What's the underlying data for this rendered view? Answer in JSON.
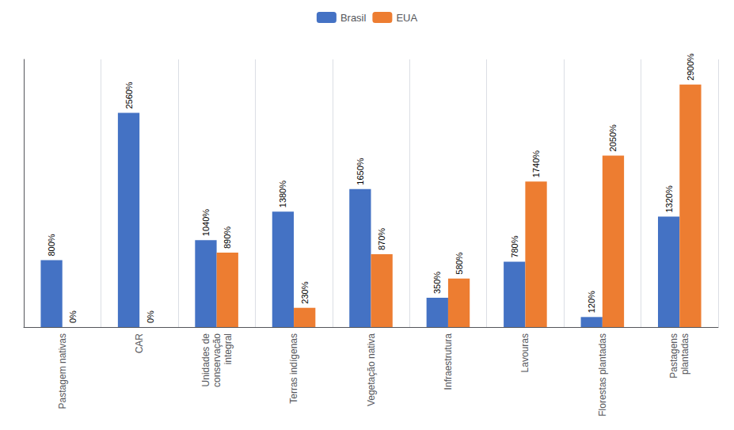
{
  "chart_data": {
    "type": "bar",
    "categories": [
      "Pastagem nativas",
      "CAR",
      "Unidades de\nconservação\nintegral",
      "Terras indígenas",
      "Vegetação nativa",
      "Infraestrutura",
      "Lavouras",
      "Florestas plantadas",
      "Pastagens\nplantadas"
    ],
    "series": [
      {
        "name": "Brasil",
        "color": "#4472C4",
        "values": [
          800,
          2560,
          1040,
          1380,
          1650,
          350,
          780,
          120,
          1320
        ],
        "value_labels": [
          "800%",
          "2560%",
          "1040%",
          "1380%",
          "1650%",
          "350%",
          "780%",
          "120%",
          "1320%"
        ]
      },
      {
        "name": "EUA",
        "color": "#ED7D31",
        "values": [
          0,
          0,
          890,
          230,
          870,
          580,
          1740,
          2050,
          2900
        ],
        "value_labels": [
          "0%",
          "0%",
          "890%",
          "230%",
          "870%",
          "580%",
          "1740%",
          "2050%",
          "2900%"
        ]
      }
    ],
    "ylim": [
      0,
      3200
    ],
    "grid": true,
    "legend": "top",
    "data_labels": true,
    "tick_labels": "x"
  }
}
